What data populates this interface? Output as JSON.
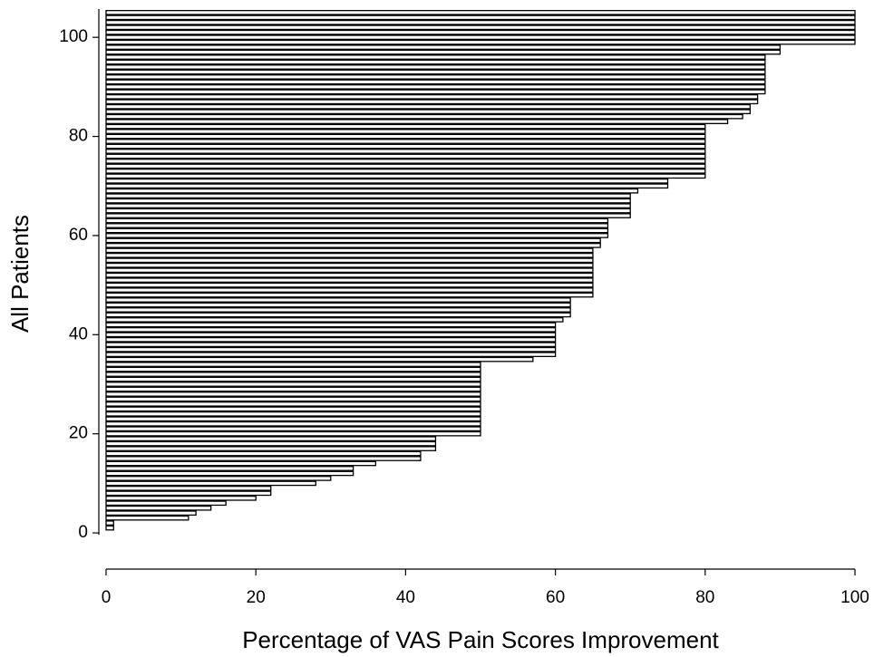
{
  "chart_data": {
    "type": "barh",
    "xlabel": "Percentage of VAS Pain Scores Improvement",
    "ylabel": "All Patients",
    "y": [
      1,
      2,
      3,
      4,
      5,
      6,
      7,
      8,
      9,
      10,
      11,
      12,
      13,
      14,
      15,
      16,
      17,
      18,
      19,
      20,
      21,
      22,
      23,
      24,
      25,
      26,
      27,
      28,
      29,
      30,
      31,
      32,
      33,
      34,
      35,
      36,
      37,
      38,
      39,
      40,
      41,
      42,
      43,
      44,
      45,
      46,
      47,
      48,
      49,
      50,
      51,
      52,
      53,
      54,
      55,
      56,
      57,
      58,
      59,
      60,
      61,
      62,
      63,
      64,
      65,
      66,
      67,
      68,
      69,
      70,
      71,
      72,
      73,
      74,
      75,
      76,
      77,
      78,
      79,
      80,
      81,
      82,
      83,
      84,
      85,
      86,
      87,
      88,
      89,
      90,
      91,
      92,
      93,
      94,
      95,
      96,
      97,
      98,
      99,
      100,
      101,
      102,
      103,
      104,
      105
    ],
    "values": [
      1,
      1,
      11,
      12,
      14,
      16,
      20,
      22,
      22,
      28,
      30,
      33,
      33,
      36,
      42,
      42,
      44,
      44,
      44,
      50,
      50,
      50,
      50,
      50,
      50,
      50,
      50,
      50,
      50,
      50,
      50,
      50,
      50,
      50,
      57,
      60,
      60,
      60,
      60,
      60,
      60,
      60,
      61,
      62,
      62,
      62,
      62,
      65,
      65,
      65,
      65,
      65,
      65,
      65,
      65,
      65,
      65,
      66,
      66,
      67,
      67,
      67,
      67,
      70,
      70,
      70,
      70,
      70,
      71,
      75,
      75,
      80,
      80,
      80,
      80,
      80,
      80,
      80,
      80,
      80,
      80,
      80,
      83,
      85,
      86,
      86,
      87,
      87,
      88,
      88,
      88,
      88,
      88,
      88,
      88,
      88,
      90,
      90,
      100,
      100,
      100,
      100,
      100,
      100,
      100
    ],
    "color": "#000000",
    "xlim": [
      0,
      100
    ],
    "xticks": [
      0,
      20,
      40,
      60,
      80,
      100
    ],
    "ylim": [
      -7.3,
      105.7
    ],
    "yticks": [
      0,
      20,
      40,
      60,
      80,
      100
    ]
  }
}
